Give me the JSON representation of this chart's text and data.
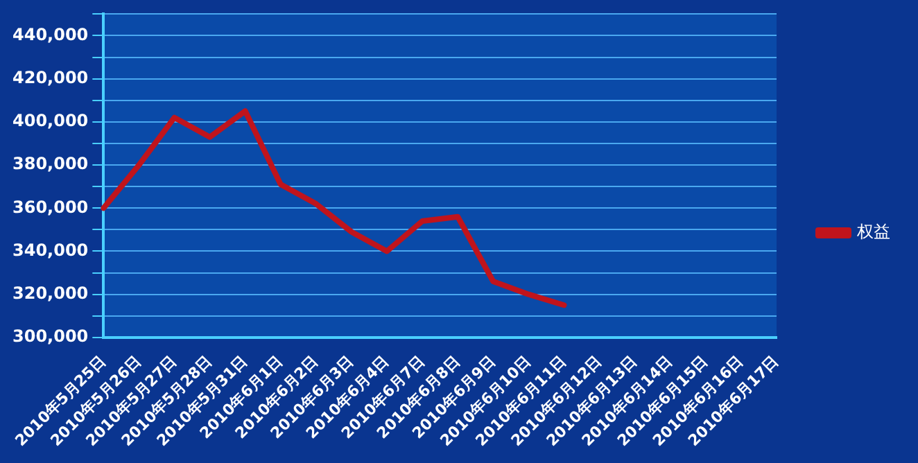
{
  "chart_data": {
    "type": "line",
    "categories": [
      "2010年5月25日",
      "2010年5月26日",
      "2010年5月27日",
      "2010年5月28日",
      "2010年5月31日",
      "2010年6月1日",
      "2010年6月2日",
      "2010年6月3日",
      "2010年6月4日",
      "2010年6月7日",
      "2010年6月8日",
      "2010年6月9日",
      "2010年6月10日",
      "2010年6月11日",
      "2010年6月12日",
      "2010年6月13日",
      "2010年6月14日",
      "2010年6月15日",
      "2010年6月16日",
      "2010年6月17日"
    ],
    "series": [
      {
        "name": "权益",
        "color": "#c0141c",
        "values": [
          360000,
          380000,
          402000,
          393000,
          405000,
          371000,
          362000,
          349000,
          340000,
          354000,
          356000,
          326000,
          320000,
          315000,
          null,
          null,
          null,
          null,
          null,
          null
        ]
      }
    ],
    "ylim": [
      300000,
      450000
    ],
    "yticks": [
      {
        "value": 300000,
        "label": "300,000"
      },
      {
        "value": 310000,
        "label": null
      },
      {
        "value": 320000,
        "label": "320,000"
      },
      {
        "value": 330000,
        "label": null
      },
      {
        "value": 340000,
        "label": "340,000"
      },
      {
        "value": 350000,
        "label": null
      },
      {
        "value": 360000,
        "label": "360,000"
      },
      {
        "value": 370000,
        "label": null
      },
      {
        "value": 380000,
        "label": "380,000"
      },
      {
        "value": 390000,
        "label": null
      },
      {
        "value": 400000,
        "label": "400,000"
      },
      {
        "value": 410000,
        "label": null
      },
      {
        "value": 420000,
        "label": "420,000"
      },
      {
        "value": 430000,
        "label": null
      },
      {
        "value": 440000,
        "label": "440,000"
      },
      {
        "value": 450000,
        "label": null
      }
    ],
    "grid": "y",
    "legend": "right",
    "marker": "none",
    "line_style": "solid"
  }
}
